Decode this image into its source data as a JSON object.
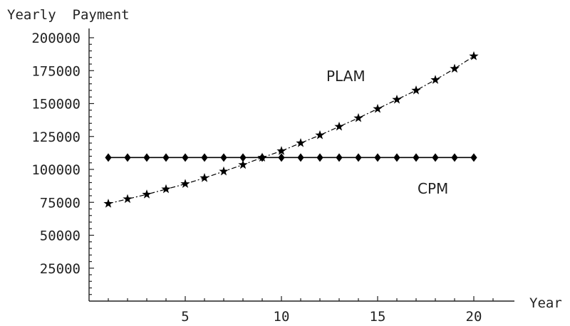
{
  "chart_data": {
    "type": "line",
    "title": "",
    "xlabel": "Year",
    "ylabel": "Yearly  Payment",
    "xlim": [
      0,
      22
    ],
    "ylim": [
      0,
      200000
    ],
    "x_ticks": [
      5,
      10,
      15,
      20
    ],
    "y_ticks": [
      25000,
      50000,
      75000,
      100000,
      125000,
      150000,
      175000,
      200000
    ],
    "grid": false,
    "legend": "none",
    "series": [
      {
        "name": "CPM",
        "marker": "diamond",
        "line_style": "solid",
        "color": "#000000",
        "x": [
          1,
          2,
          3,
          4,
          5,
          6,
          7,
          8,
          9,
          10,
          11,
          12,
          13,
          14,
          15,
          16,
          17,
          18,
          19,
          20
        ],
        "y": [
          109000,
          109000,
          109000,
          109000,
          109000,
          109000,
          109000,
          109000,
          109000,
          109000,
          109000,
          109000,
          109000,
          109000,
          109000,
          109000,
          109000,
          109000,
          109000,
          109000
        ]
      },
      {
        "name": "PLAM",
        "marker": "star",
        "line_style": "dash-dot",
        "color": "#000000",
        "x": [
          1,
          2,
          3,
          4,
          5,
          6,
          7,
          8,
          9,
          10,
          11,
          12,
          13,
          14,
          15,
          16,
          17,
          18,
          19,
          20
        ],
        "y": [
          74000,
          77500,
          81000,
          85000,
          89000,
          93500,
          98500,
          103500,
          109000,
          114000,
          120000,
          126000,
          132500,
          139000,
          146000,
          153000,
          160000,
          168000,
          176500,
          186000
        ]
      }
    ]
  }
}
